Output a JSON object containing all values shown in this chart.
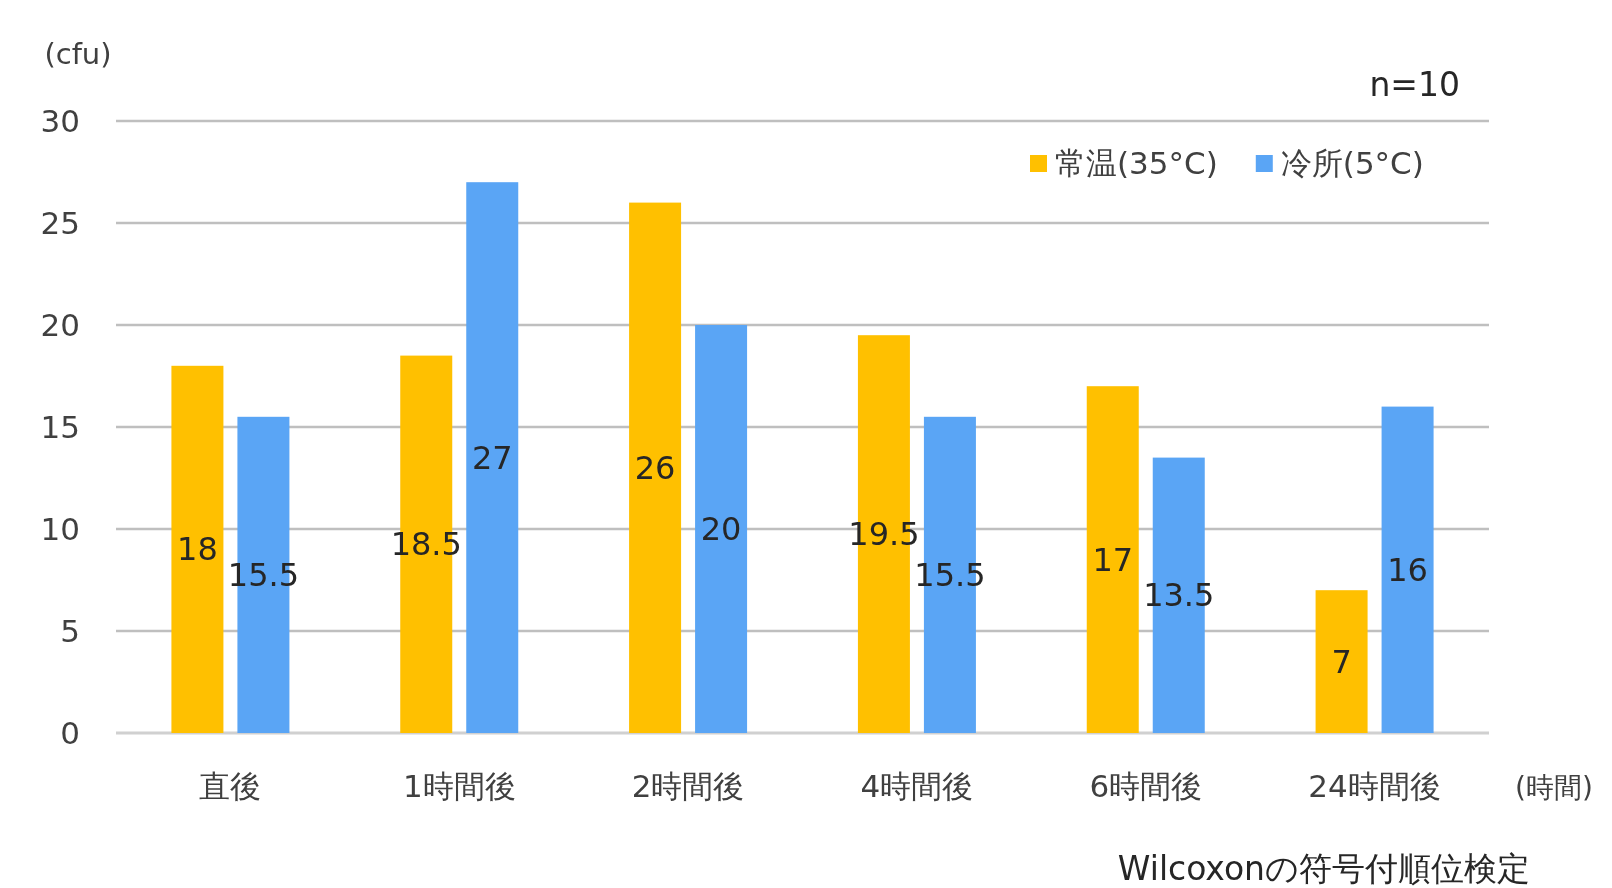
{
  "chart_data": {
    "type": "bar",
    "categories": [
      "直後",
      "1時間後",
      "2時間後",
      "4時間後",
      "6時間後",
      "24時間後"
    ],
    "series": [
      {
        "name": "常温(35°C)",
        "color": "#ffc000",
        "values": [
          18,
          18.5,
          26,
          19.5,
          17,
          7
        ]
      },
      {
        "name": "冷所(5°C)",
        "color": "#5aa5f5",
        "values": [
          15.5,
          27,
          20,
          15.5,
          13.5,
          16
        ]
      }
    ],
    "ylabel": "(cfu)",
    "xlabel": "(時間)",
    "ylim": [
      0,
      30
    ],
    "yticks": [
      0,
      5,
      10,
      15,
      20,
      25,
      30
    ],
    "grid": "y",
    "legend": "top right",
    "data_labels": true,
    "annotations": [
      "n=10",
      "Wilcoxonの符号付順位検定"
    ]
  }
}
